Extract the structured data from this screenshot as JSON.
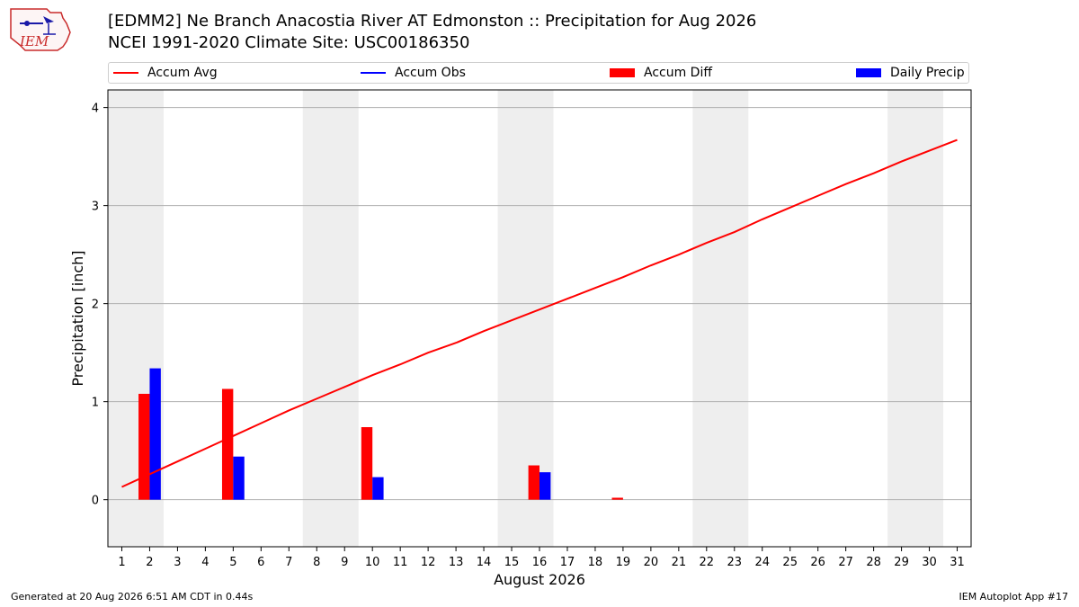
{
  "header": {
    "title_line1": "[EDMM2] Ne Branch Anacostia River  AT Edmonston :: Precipitation for Aug 2026",
    "title_line2": "NCEI 1991-2020 Climate Site: USC00186350",
    "logo_text": "IEM"
  },
  "legend": {
    "accum_avg": "Accum Avg",
    "accum_obs": "Accum Obs",
    "accum_diff": "Accum Diff",
    "daily_precip": "Daily Precip"
  },
  "footer": {
    "generated": "Generated at 20 Aug 2026 6:51 AM CDT in 0.44s",
    "app": "IEM Autoplot App #17"
  },
  "colors": {
    "avg": "#ff0000",
    "obs": "#0000ff",
    "diff": "#ff0000",
    "daily": "#0000ff",
    "weekend_band": "#eeeeee",
    "grid": "#b0b0b0"
  },
  "chart_data": {
    "type": "bar",
    "xlabel": "August 2026",
    "ylabel": "Precipitation [inch]",
    "xlim": [
      0.5,
      31.5
    ],
    "ylim": [
      -0.48,
      4.18
    ],
    "x_ticks": [
      1,
      2,
      3,
      4,
      5,
      6,
      7,
      8,
      9,
      10,
      11,
      12,
      13,
      14,
      15,
      16,
      17,
      18,
      19,
      20,
      21,
      22,
      23,
      24,
      25,
      26,
      27,
      28,
      29,
      30,
      31
    ],
    "y_ticks": [
      0,
      1,
      2,
      3,
      4
    ],
    "grid": "horizontal",
    "legend_position": "top",
    "weekend_bands": [
      [
        0.5,
        2.5
      ],
      [
        7.5,
        9.5
      ],
      [
        14.5,
        16.5
      ],
      [
        21.5,
        23.5
      ],
      [
        28.5,
        30.5
      ]
    ],
    "series": [
      {
        "name": "Accum Avg",
        "kind": "line",
        "x": [
          1,
          2,
          3,
          4,
          5,
          6,
          7,
          8,
          9,
          10,
          11,
          12,
          13,
          14,
          15,
          16,
          17,
          18,
          19,
          20,
          21,
          22,
          23,
          24,
          25,
          26,
          27,
          28,
          29,
          30,
          31
        ],
        "values": [
          0.13,
          0.26,
          0.39,
          0.52,
          0.65,
          0.78,
          0.91,
          1.03,
          1.15,
          1.27,
          1.38,
          1.5,
          1.6,
          1.72,
          1.83,
          1.94,
          2.05,
          2.16,
          2.27,
          2.39,
          2.5,
          2.62,
          2.73,
          2.86,
          2.98,
          3.1,
          3.22,
          3.33,
          3.45,
          3.56,
          3.67
        ]
      },
      {
        "name": "Accum Obs",
        "kind": "line",
        "x": [],
        "values": []
      },
      {
        "name": "Accum Diff",
        "kind": "bar",
        "x": [
          2,
          5,
          10,
          16,
          19
        ],
        "values": [
          1.08,
          1.13,
          0.74,
          0.35,
          0.02
        ]
      },
      {
        "name": "Daily Precip",
        "kind": "bar",
        "x": [
          2,
          5,
          10,
          16
        ],
        "values": [
          1.34,
          0.44,
          0.23,
          0.28
        ]
      }
    ]
  }
}
